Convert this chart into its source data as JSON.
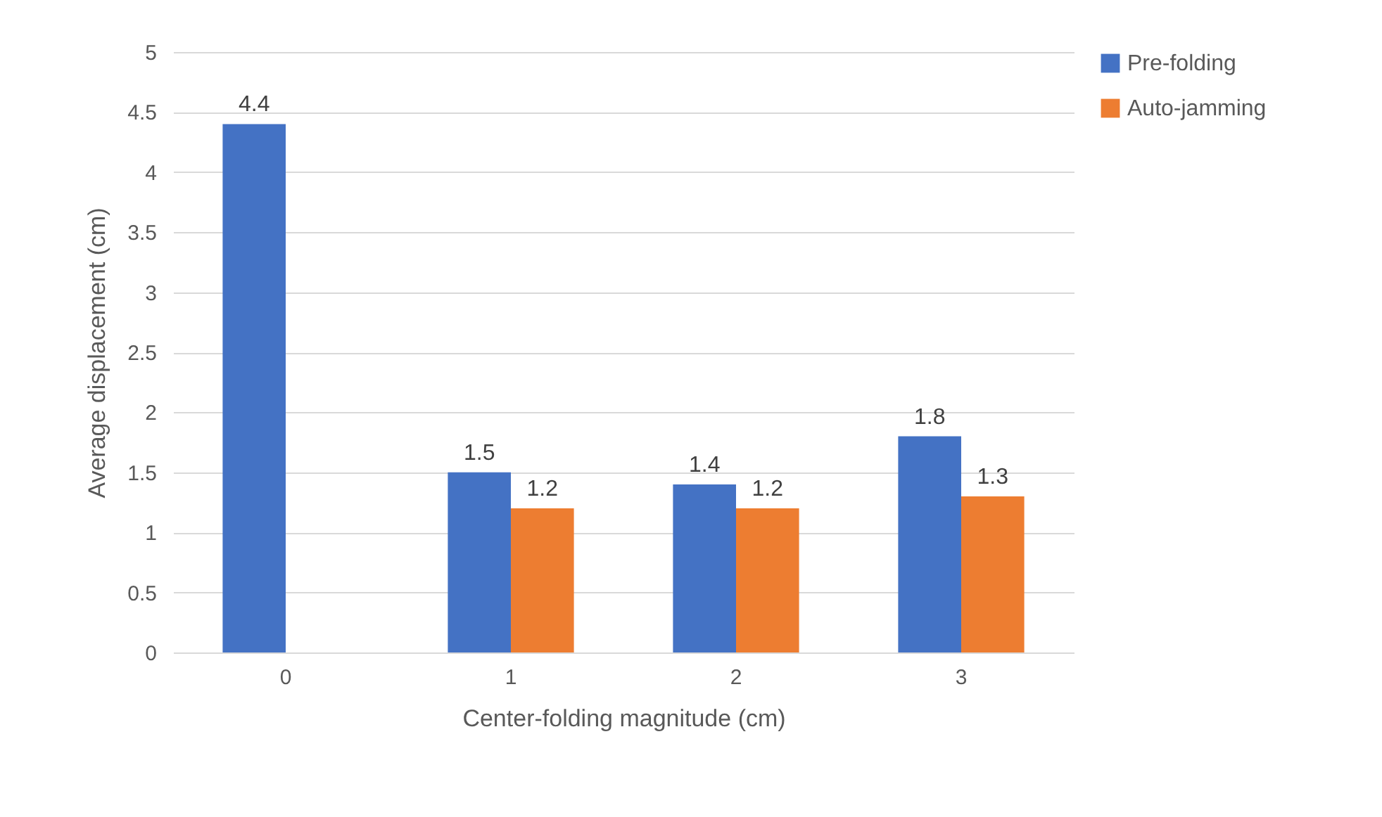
{
  "chart_data": {
    "type": "bar",
    "xlabel": "Center-folding magnitude (cm)",
    "ylabel": "Average displacement (cm)",
    "categories": [
      "0",
      "1",
      "2",
      "3"
    ],
    "series": [
      {
        "name": "Pre-folding",
        "color": "#4472c4",
        "values": [
          4.4,
          1.5,
          1.4,
          1.8
        ]
      },
      {
        "name": "Auto-jamming",
        "color": "#ed7d31",
        "values": [
          null,
          1.2,
          1.2,
          1.3
        ]
      }
    ],
    "ylim": [
      0,
      5
    ],
    "yticks": [
      0,
      0.5,
      1,
      1.5,
      2,
      2.5,
      3,
      3.5,
      4,
      4.5,
      5
    ],
    "grid": "y",
    "legend": "right",
    "data_labels": true
  }
}
